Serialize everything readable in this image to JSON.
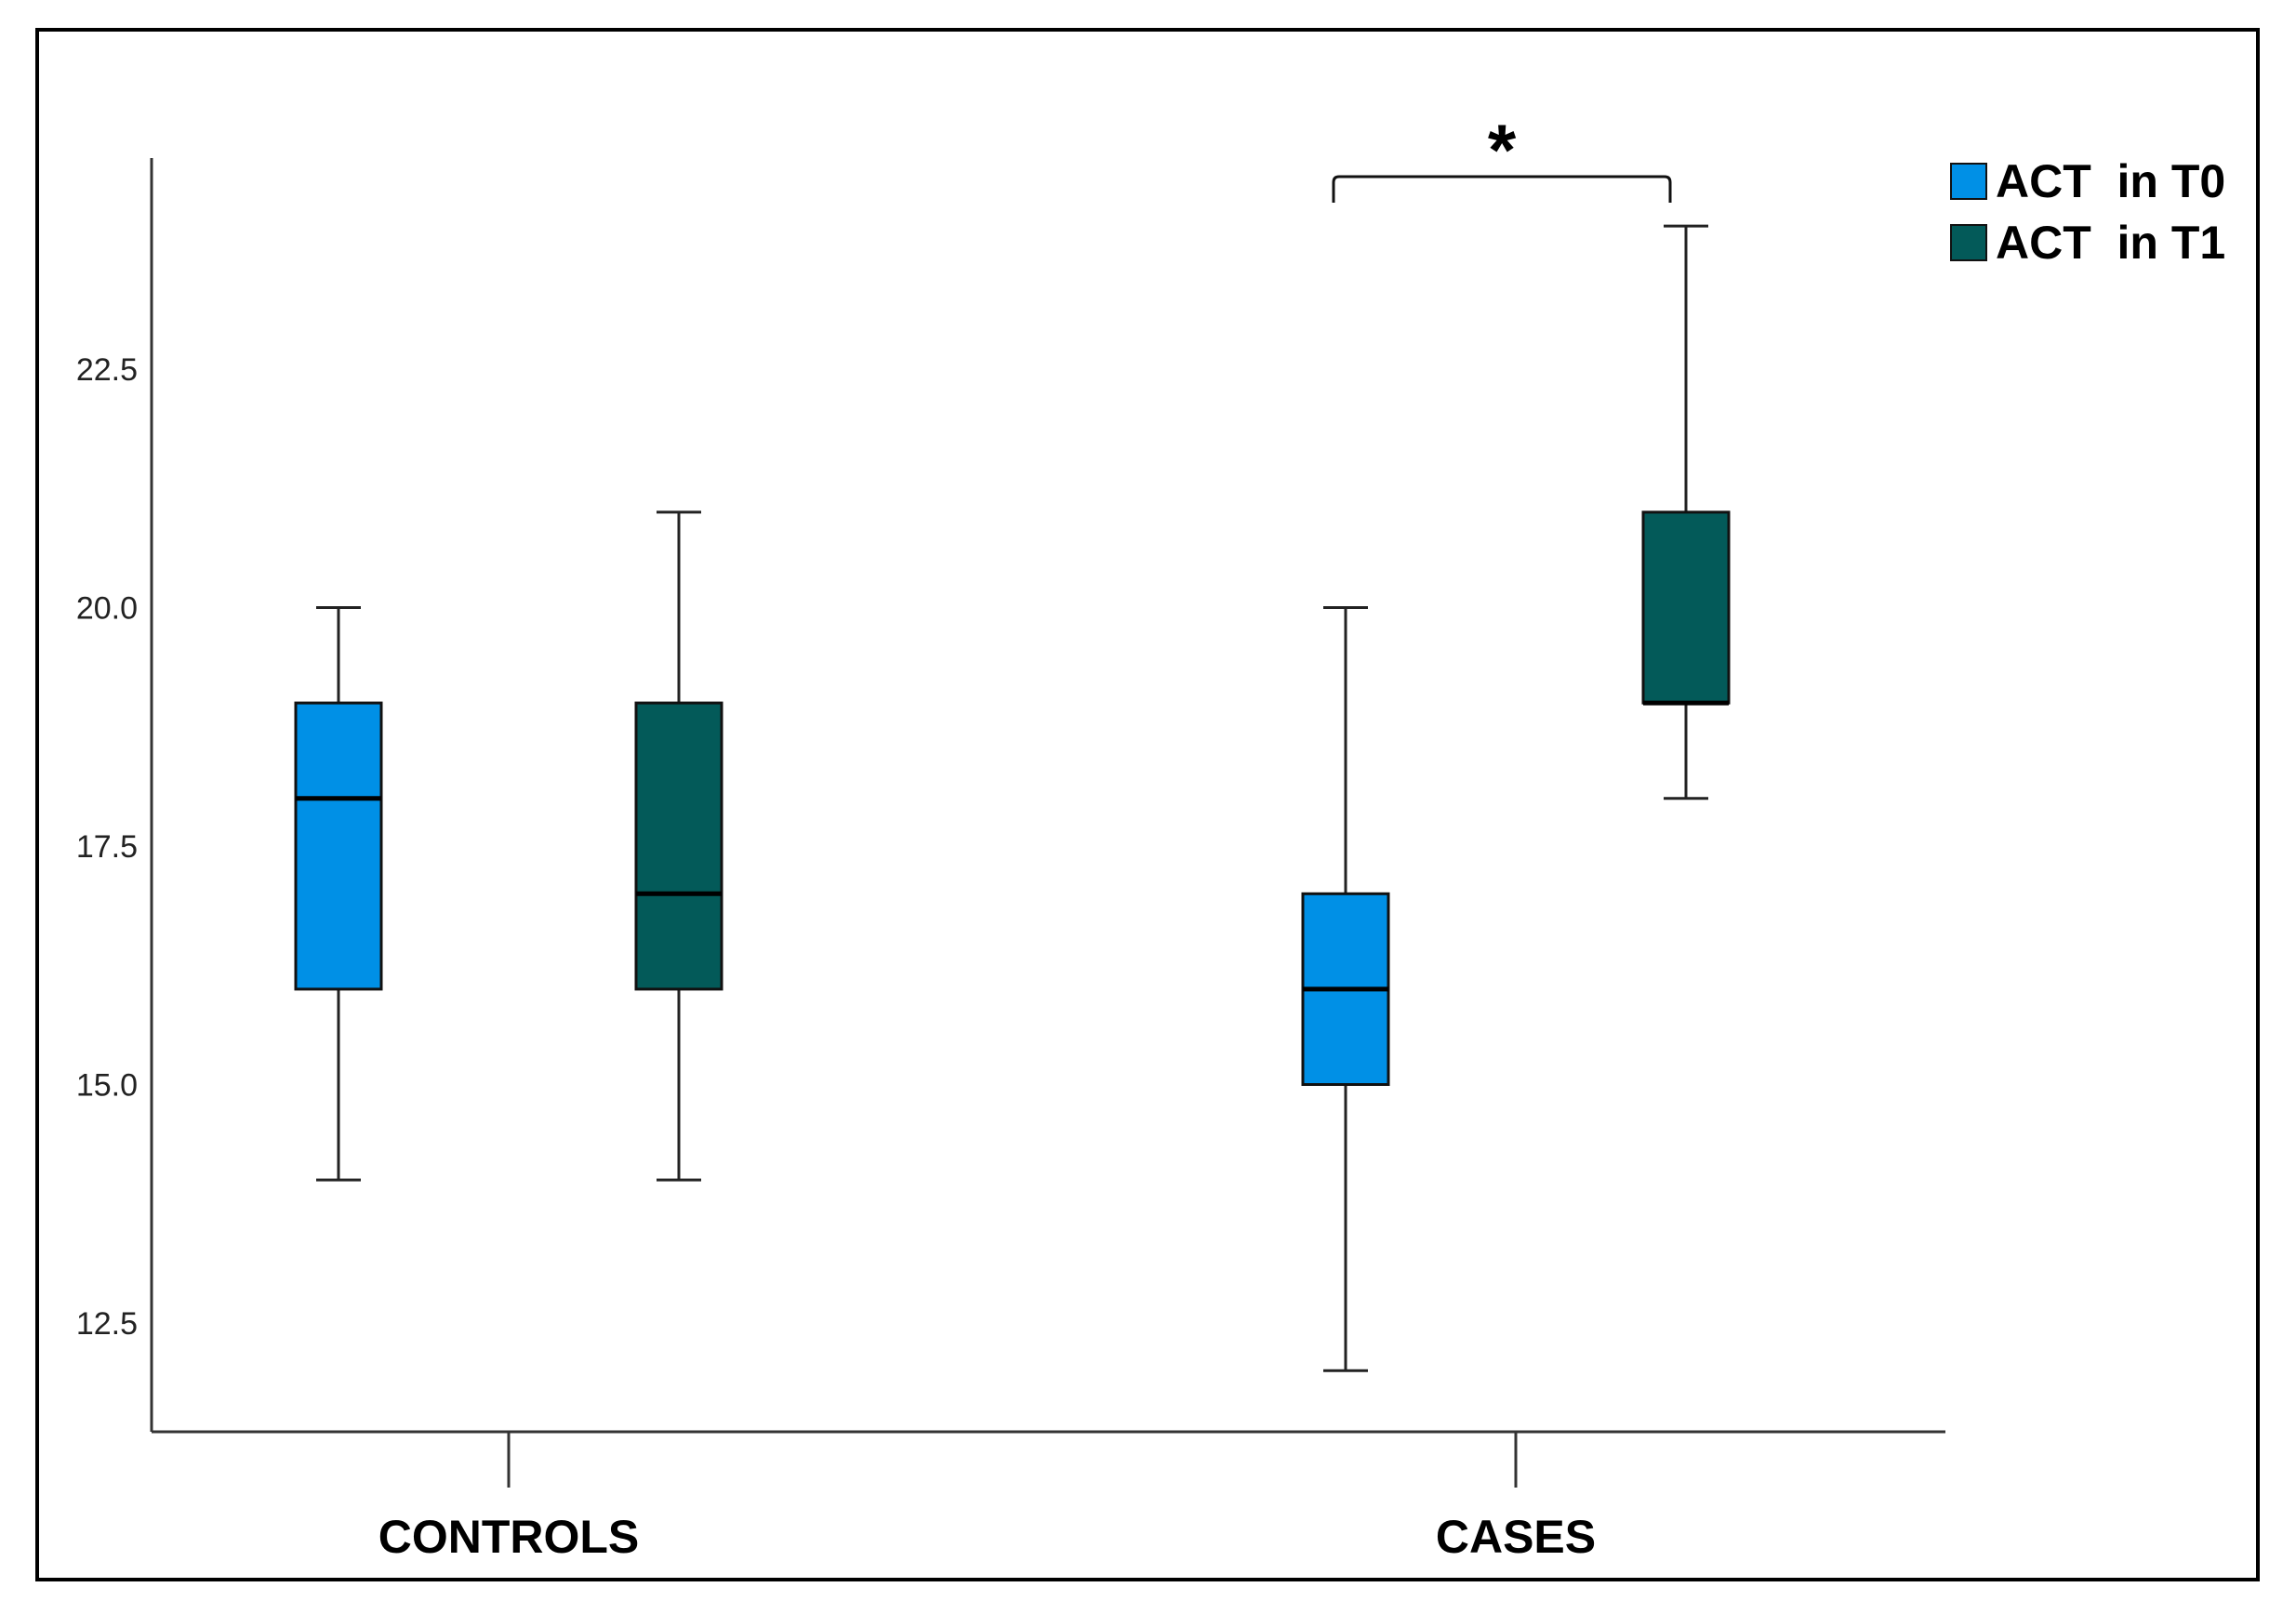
{
  "chart_data": {
    "type": "boxplot",
    "title": "",
    "xlabel": "",
    "ylabel": "",
    "ylim": [
      11.2,
      25.0
    ],
    "yticks": [
      "12.5",
      "15.0",
      "17.5",
      "20.0",
      "22.5"
    ],
    "ytick_values": [
      12.5,
      15.0,
      17.5,
      20.0,
      22.5
    ],
    "categories": [
      "CONTROLS",
      "CASES"
    ],
    "legend_position": "top-right",
    "series": [
      {
        "name": "ACT  in T0",
        "color": "#0090e6",
        "boxes": [
          {
            "min": 14,
            "q1": 16,
            "median": 18,
            "q3": 19,
            "max": 20
          },
          {
            "min": 12,
            "q1": 15,
            "median": 16,
            "q3": 17,
            "max": 20
          }
        ]
      },
      {
        "name": "ACT  in T1",
        "color": "#035a59",
        "boxes": [
          {
            "min": 14,
            "q1": 16,
            "median": 17,
            "q3": 19,
            "max": 21
          },
          {
            "min": 18,
            "q1": 19,
            "median": 19,
            "q3": 21,
            "max": 24
          }
        ]
      }
    ],
    "annotations": [
      {
        "text": "*",
        "category": "CASES",
        "between": [
          "ACT  in T0",
          "ACT  in T1"
        ]
      }
    ]
  }
}
